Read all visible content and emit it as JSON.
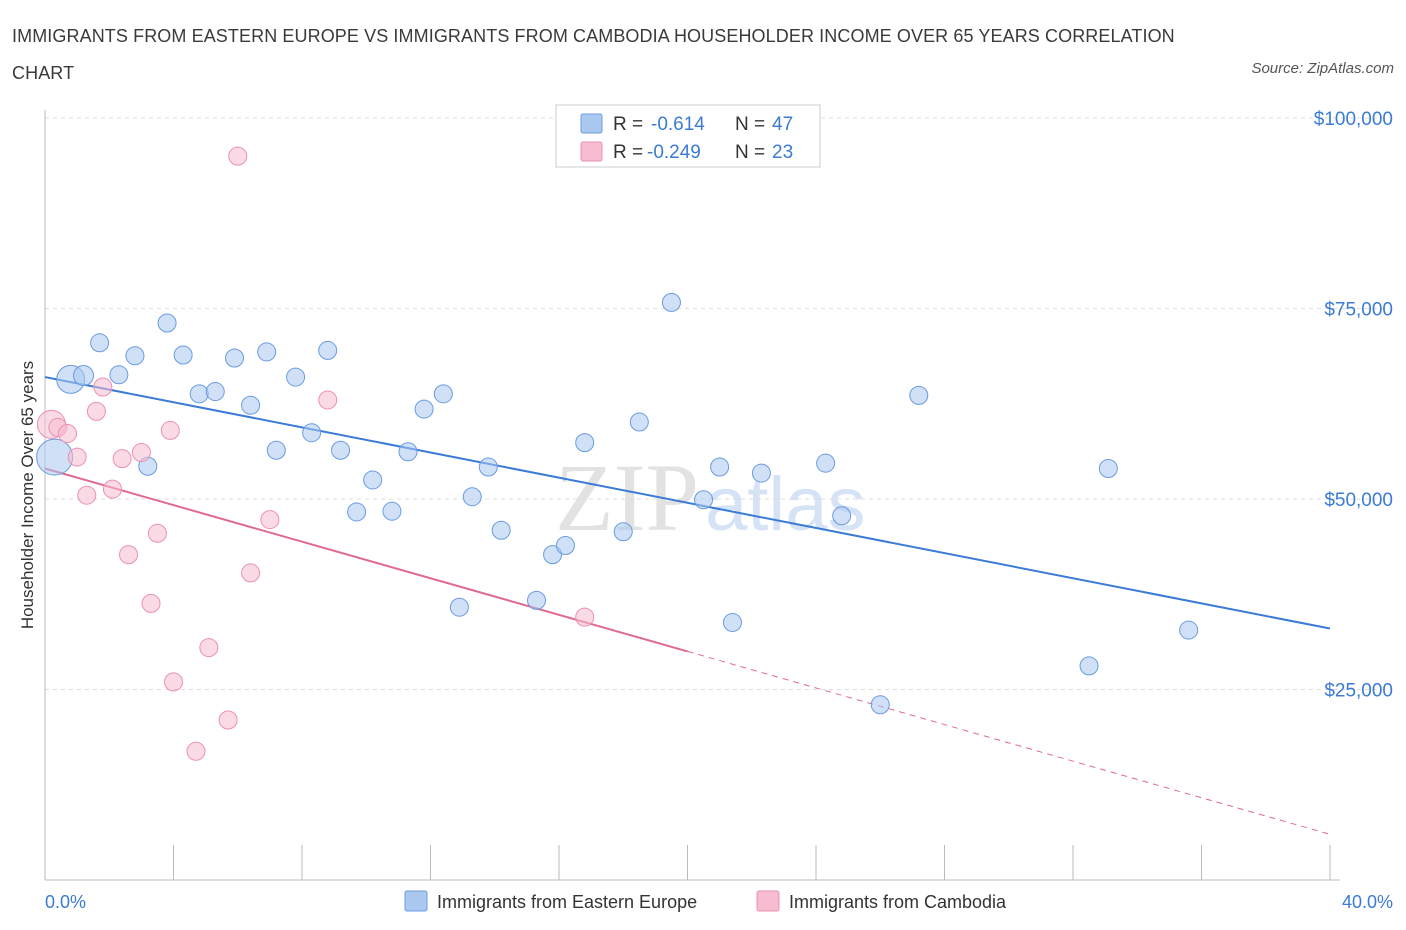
{
  "title": "IMMIGRANTS FROM EASTERN EUROPE VS IMMIGRANTS FROM CAMBODIA HOUSEHOLDER INCOME OVER 65 YEARS CORRELATION CHART",
  "source": "Source: ZipAtlas.com",
  "watermark": {
    "zip": "ZIP",
    "atlas": "atlas"
  },
  "colors": {
    "blue": "#3a7bd5",
    "blue_fill": "#aac8f0",
    "blue_stroke": "#6a9be0",
    "pink": "#e06a92",
    "pink_fill": "#f6bdd0",
    "pink_stroke": "#ec90b0",
    "grid": "#dddddd",
    "axis_text": "#3a7bd5"
  },
  "legend": {
    "rows": [
      {
        "r_label": "R =",
        "r_value": "-0.614",
        "n_label": "N =",
        "n_value": "47"
      },
      {
        "r_label": "R =",
        "r_value": "-0.249",
        "n_label": "N =",
        "n_value": "23"
      }
    ]
  },
  "chart_data": {
    "type": "scatter",
    "title": "IMMIGRANTS FROM EASTERN EUROPE VS IMMIGRANTS FROM CAMBODIA HOUSEHOLDER INCOME OVER 65 YEARS CORRELATION CHART",
    "xlabel": "",
    "ylabel": "Householder Income Over 65 years",
    "xlim": [
      0,
      40
    ],
    "ylim": [
      0,
      100000
    ],
    "x_tick_labels": [
      "0.0%",
      "40.0%"
    ],
    "y_ticks": [
      25000,
      50000,
      75000,
      100000
    ],
    "y_tick_labels": [
      "$25,000",
      "$50,000",
      "$75,000",
      "$100,000"
    ],
    "grid": true,
    "legend_position": "top-center",
    "series": [
      {
        "name": "Immigrants from Eastern Europe",
        "r": -0.614,
        "n": 47,
        "trend": {
          "x": [
            0,
            40
          ],
          "y": [
            66000,
            33000
          ],
          "solid_to": 40
        },
        "points": [
          [
            0.3,
            55500,
            18
          ],
          [
            0.8,
            65700,
            14
          ],
          [
            1.2,
            66200,
            10
          ],
          [
            1.7,
            70500,
            9
          ],
          [
            2.3,
            66300,
            9
          ],
          [
            2.8,
            68800,
            9
          ],
          [
            3.2,
            54300,
            9
          ],
          [
            3.8,
            73100,
            9
          ],
          [
            4.3,
            68900,
            9
          ],
          [
            4.8,
            63800,
            9
          ],
          [
            5.3,
            64100,
            9
          ],
          [
            5.9,
            68500,
            9
          ],
          [
            6.4,
            62300,
            9
          ],
          [
            6.9,
            69300,
            9
          ],
          [
            7.2,
            56400,
            9
          ],
          [
            7.8,
            66000,
            9
          ],
          [
            8.3,
            58700,
            9
          ],
          [
            8.8,
            69500,
            9
          ],
          [
            9.2,
            56400,
            9
          ],
          [
            9.7,
            48300,
            9
          ],
          [
            10.2,
            52500,
            9
          ],
          [
            10.8,
            48400,
            9
          ],
          [
            11.3,
            56200,
            9
          ],
          [
            11.8,
            61800,
            9
          ],
          [
            12.4,
            63800,
            9
          ],
          [
            12.9,
            35800,
            9
          ],
          [
            13.3,
            50300,
            9
          ],
          [
            13.8,
            54200,
            9
          ],
          [
            14.2,
            45900,
            9
          ],
          [
            15.3,
            36700,
            9
          ],
          [
            15.8,
            42700,
            9
          ],
          [
            16.2,
            43900,
            9
          ],
          [
            16.8,
            57400,
            9
          ],
          [
            18.0,
            45700,
            9
          ],
          [
            18.5,
            60100,
            9
          ],
          [
            19.5,
            75800,
            9
          ],
          [
            20.5,
            49900,
            9
          ],
          [
            21.0,
            54200,
            9
          ],
          [
            21.4,
            33800,
            9
          ],
          [
            22.3,
            53400,
            9
          ],
          [
            24.3,
            54700,
            9
          ],
          [
            24.8,
            47800,
            9
          ],
          [
            26.0,
            23000,
            9
          ],
          [
            27.2,
            63600,
            9
          ],
          [
            32.5,
            28100,
            9
          ],
          [
            33.1,
            54000,
            9
          ],
          [
            35.6,
            32800,
            9
          ]
        ]
      },
      {
        "name": "Immigrants from Cambodia",
        "r": -0.249,
        "n": 23,
        "trend": {
          "x": [
            0,
            40
          ],
          "y": [
            54000,
            6000
          ],
          "solid_to": 20
        },
        "points": [
          [
            0.2,
            59800,
            14
          ],
          [
            0.4,
            59400,
            9
          ],
          [
            0.7,
            58600,
            9
          ],
          [
            1.0,
            55500,
            9
          ],
          [
            1.3,
            50500,
            9
          ],
          [
            1.6,
            61500,
            9
          ],
          [
            1.8,
            64700,
            9
          ],
          [
            2.1,
            51300,
            9
          ],
          [
            2.4,
            55300,
            9
          ],
          [
            2.6,
            42700,
            9
          ],
          [
            3.0,
            56100,
            9
          ],
          [
            3.3,
            36300,
            9
          ],
          [
            3.5,
            45500,
            9
          ],
          [
            3.9,
            59000,
            9
          ],
          [
            4.0,
            26000,
            9
          ],
          [
            4.7,
            16900,
            9
          ],
          [
            5.1,
            30500,
            9
          ],
          [
            5.7,
            21000,
            9
          ],
          [
            6.0,
            95000,
            9
          ],
          [
            6.4,
            40300,
            9
          ],
          [
            7.0,
            47300,
            9
          ],
          [
            8.8,
            63000,
            9
          ],
          [
            16.8,
            34500,
            9
          ]
        ]
      }
    ]
  }
}
